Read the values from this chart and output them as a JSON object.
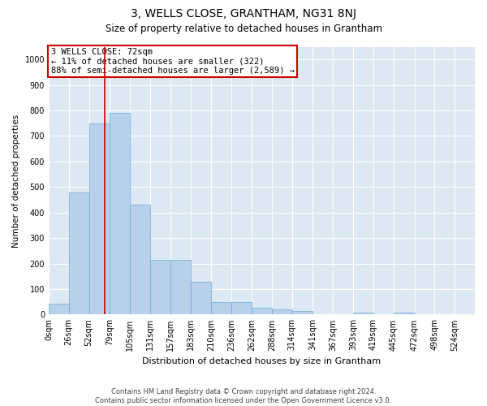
{
  "title": "3, WELLS CLOSE, GRANTHAM, NG31 8NJ",
  "subtitle": "Size of property relative to detached houses in Grantham",
  "xlabel": "Distribution of detached houses by size in Grantham",
  "ylabel": "Number of detached properties",
  "categories": [
    "0sqm",
    "26sqm",
    "52sqm",
    "79sqm",
    "105sqm",
    "131sqm",
    "157sqm",
    "183sqm",
    "210sqm",
    "236sqm",
    "262sqm",
    "288sqm",
    "314sqm",
    "341sqm",
    "367sqm",
    "393sqm",
    "419sqm",
    "445sqm",
    "472sqm",
    "498sqm",
    "524sqm"
  ],
  "values": [
    42,
    480,
    750,
    790,
    430,
    215,
    215,
    130,
    50,
    50,
    27,
    20,
    13,
    0,
    0,
    7,
    0,
    7,
    0,
    0,
    0
  ],
  "bar_color": "#b8d0ea",
  "bar_edge_color": "#6eaad4",
  "property_line_x": 72,
  "property_line_label": "3 WELLS CLOSE: 72sqm",
  "annotation_line1": "← 11% of detached houses are smaller (322)",
  "annotation_line2": "88% of semi-detached houses are larger (2,589) →",
  "annotation_box_color": "#cc0000",
  "ylim_max": 1050,
  "yticks": [
    0,
    100,
    200,
    300,
    400,
    500,
    600,
    700,
    800,
    900,
    1000
  ],
  "bin_edges": [
    0,
    26,
    52,
    79,
    105,
    131,
    157,
    183,
    210,
    236,
    262,
    288,
    314,
    341,
    367,
    393,
    419,
    445,
    472,
    498,
    524,
    550
  ],
  "footer": "Contains HM Land Registry data © Crown copyright and database right 2024.\nContains public sector information licensed under the Open Government Licence v3.0.",
  "bg_color": "#dde8f5",
  "fig_bg": "#ffffff",
  "grid_color": "#ffffff",
  "title_fontsize": 10,
  "subtitle_fontsize": 8.5,
  "ylabel_fontsize": 7.5,
  "xlabel_fontsize": 8,
  "tick_fontsize": 7,
  "annot_fontsize": 7.5,
  "footer_fontsize": 6
}
